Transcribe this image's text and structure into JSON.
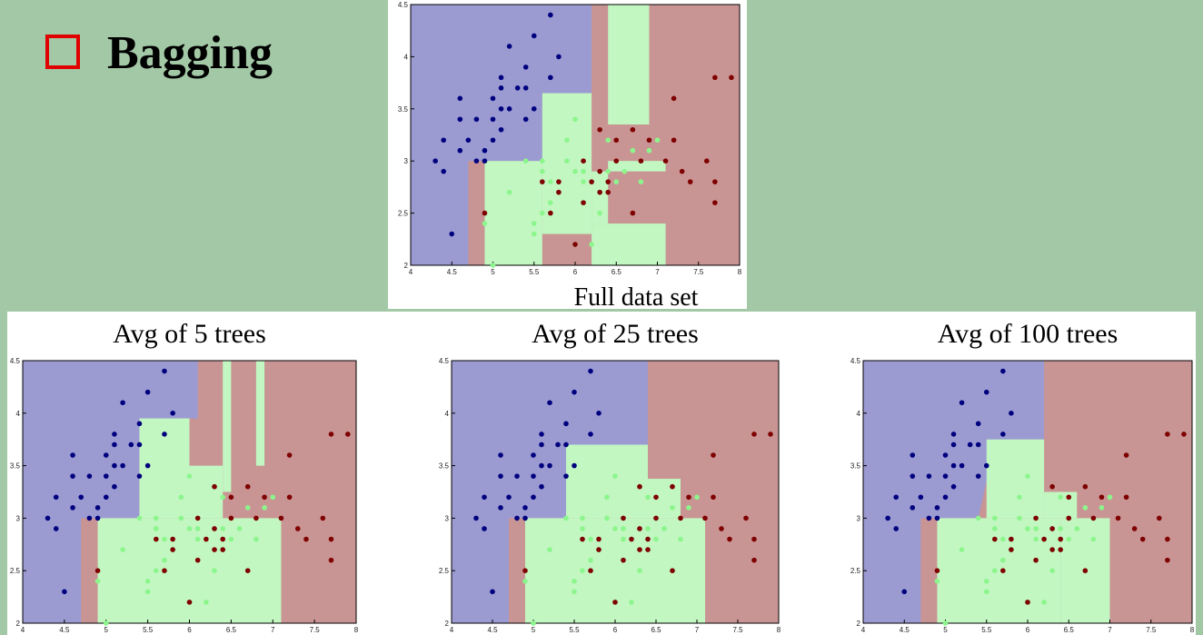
{
  "slide_title": "Bagging",
  "chart_data": [
    {
      "type": "scatter",
      "caption": "Full data set",
      "xlim": [
        4,
        8
      ],
      "ylim": [
        2,
        4.5
      ],
      "xticks": [
        4,
        4.5,
        5,
        5.5,
        6,
        6.5,
        7,
        7.5,
        8
      ],
      "yticks": [
        2,
        2.5,
        3,
        3.5,
        4,
        4.5
      ],
      "series": [
        {
          "color": "#00007f",
          "x": [
            5.1,
            4.9,
            4.7,
            4.6,
            5.0,
            5.4,
            4.6,
            5.0,
            4.4,
            4.9,
            5.4,
            4.8,
            4.8,
            4.3,
            5.8,
            5.7,
            5.7,
            5.1,
            5.4,
            5.1,
            4.6,
            5.1,
            5.2,
            5.2,
            5.5,
            5.0,
            5.5,
            4.5,
            4.4,
            5.3
          ],
          "y": [
            3.5,
            3.0,
            3.2,
            3.1,
            3.6,
            3.9,
            3.4,
            3.4,
            2.9,
            3.1,
            3.7,
            3.4,
            3.0,
            3.0,
            4.0,
            4.4,
            3.8,
            3.8,
            3.4,
            3.7,
            3.6,
            3.3,
            3.5,
            4.1,
            4.2,
            3.2,
            3.5,
            2.3,
            3.2,
            3.7
          ]
        },
        {
          "color": "#8cf58c",
          "x": [
            7.0,
            6.4,
            6.9,
            5.5,
            6.5,
            5.7,
            6.3,
            4.9,
            6.6,
            5.2,
            5.0,
            5.9,
            6.0,
            6.1,
            5.6,
            6.7,
            5.6,
            5.8,
            6.2,
            5.6,
            5.9,
            6.1,
            6.3,
            6.4,
            6.8,
            6.0,
            5.7,
            5.5,
            6.0,
            5.4
          ],
          "y": [
            3.2,
            3.2,
            3.1,
            2.3,
            2.8,
            2.8,
            3.3,
            2.4,
            2.9,
            2.7,
            2.0,
            3.0,
            2.2,
            2.9,
            2.9,
            3.1,
            3.0,
            2.7,
            2.2,
            2.5,
            3.2,
            2.8,
            2.5,
            2.9,
            2.8,
            2.9,
            2.6,
            2.4,
            3.4,
            3.0
          ]
        },
        {
          "color": "#7f0000",
          "x": [
            6.3,
            5.8,
            7.1,
            6.3,
            6.5,
            7.6,
            4.9,
            7.3,
            6.7,
            7.2,
            6.5,
            6.4,
            6.8,
            5.7,
            5.8,
            7.7,
            7.7,
            6.0,
            6.9,
            5.6,
            7.7,
            6.3,
            6.7,
            7.2,
            6.2,
            6.1,
            7.4,
            7.9,
            6.4,
            6.1
          ],
          "y": [
            3.3,
            2.7,
            3.0,
            2.9,
            3.0,
            3.0,
            2.5,
            2.9,
            2.5,
            3.6,
            3.2,
            2.7,
            3.0,
            2.5,
            2.8,
            3.8,
            2.6,
            2.2,
            3.2,
            2.8,
            2.8,
            2.7,
            3.3,
            3.2,
            2.8,
            3.0,
            2.8,
            3.8,
            2.8,
            2.6
          ]
        }
      ]
    },
    {
      "type": "scatter",
      "title": "Avg of 5 trees",
      "xlim": [
        4,
        8
      ],
      "ylim": [
        2,
        4.5
      ],
      "xticks": [
        4,
        4.5,
        5,
        5.5,
        6,
        6.5,
        7,
        7.5,
        8
      ],
      "yticks": [
        2,
        2.5,
        3,
        3.5,
        4,
        4.5
      ],
      "series": [
        {
          "color": "#00007f",
          "x": [
            5.1,
            4.9,
            4.7,
            4.6,
            5.0,
            5.4,
            4.6,
            5.0,
            4.4,
            4.9,
            5.4,
            4.8,
            4.8,
            4.3,
            5.8,
            5.7,
            5.7,
            5.1,
            5.4,
            5.1,
            4.6,
            5.1,
            5.2,
            5.2,
            5.5,
            5.0,
            5.5,
            4.5,
            4.4,
            5.3
          ],
          "y": [
            3.5,
            3.0,
            3.2,
            3.1,
            3.6,
            3.9,
            3.4,
            3.4,
            2.9,
            3.1,
            3.7,
            3.4,
            3.0,
            3.0,
            4.0,
            4.4,
            3.8,
            3.8,
            3.4,
            3.7,
            3.6,
            3.3,
            3.5,
            4.1,
            4.2,
            3.2,
            3.5,
            2.3,
            3.2,
            3.7
          ]
        },
        {
          "color": "#8cf58c",
          "x": [
            7.0,
            6.4,
            6.9,
            5.5,
            6.5,
            5.7,
            6.3,
            4.9,
            6.6,
            5.2,
            5.0,
            5.9,
            6.0,
            6.1,
            5.6,
            6.7,
            5.6,
            5.8,
            6.2,
            5.6,
            5.9,
            6.1,
            6.3,
            6.4,
            6.8,
            6.0,
            5.7,
            5.5,
            6.0,
            5.4
          ],
          "y": [
            3.2,
            3.2,
            3.1,
            2.3,
            2.8,
            2.8,
            3.3,
            2.4,
            2.9,
            2.7,
            2.0,
            3.0,
            2.2,
            2.9,
            2.9,
            3.1,
            3.0,
            2.7,
            2.2,
            2.5,
            3.2,
            2.8,
            2.5,
            2.9,
            2.8,
            2.9,
            2.6,
            2.4,
            3.4,
            3.0
          ]
        },
        {
          "color": "#7f0000",
          "x": [
            6.3,
            5.8,
            7.1,
            6.3,
            6.5,
            7.6,
            4.9,
            7.3,
            6.7,
            7.2,
            6.5,
            6.4,
            6.8,
            5.7,
            5.8,
            7.7,
            7.7,
            6.0,
            6.9,
            5.6,
            7.7,
            6.3,
            6.7,
            7.2,
            6.2,
            6.1,
            7.4,
            7.9,
            6.4,
            6.1
          ],
          "y": [
            3.3,
            2.7,
            3.0,
            2.9,
            3.0,
            3.0,
            2.5,
            2.9,
            2.5,
            3.6,
            3.2,
            2.7,
            3.0,
            2.5,
            2.8,
            3.8,
            2.6,
            2.2,
            3.2,
            2.8,
            2.8,
            2.7,
            3.3,
            3.2,
            2.8,
            3.0,
            2.8,
            3.8,
            2.8,
            2.6
          ]
        }
      ]
    },
    {
      "type": "scatter",
      "title": "Avg of 25 trees",
      "xlim": [
        4,
        8
      ],
      "ylim": [
        2,
        4.5
      ],
      "xticks": [
        4,
        4.5,
        5,
        5.5,
        6,
        6.5,
        7,
        7.5,
        8
      ],
      "yticks": [
        2,
        2.5,
        3,
        3.5,
        4,
        4.5
      ],
      "series": [
        {
          "color": "#00007f",
          "x": [
            5.1,
            4.9,
            4.7,
            4.6,
            5.0,
            5.4,
            4.6,
            5.0,
            4.4,
            4.9,
            5.4,
            4.8,
            4.8,
            4.3,
            5.8,
            5.7,
            5.7,
            5.1,
            5.4,
            5.1,
            4.6,
            5.1,
            5.2,
            5.2,
            5.5,
            5.0,
            5.5,
            4.5,
            4.4,
            5.3
          ],
          "y": [
            3.5,
            3.0,
            3.2,
            3.1,
            3.6,
            3.9,
            3.4,
            3.4,
            2.9,
            3.1,
            3.7,
            3.4,
            3.0,
            3.0,
            4.0,
            4.4,
            3.8,
            3.8,
            3.4,
            3.7,
            3.6,
            3.3,
            3.5,
            4.1,
            4.2,
            3.2,
            3.5,
            2.3,
            3.2,
            3.7
          ]
        },
        {
          "color": "#8cf58c",
          "x": [
            7.0,
            6.4,
            6.9,
            5.5,
            6.5,
            5.7,
            6.3,
            4.9,
            6.6,
            5.2,
            5.0,
            5.9,
            6.0,
            6.1,
            5.6,
            6.7,
            5.6,
            5.8,
            6.2,
            5.6,
            5.9,
            6.1,
            6.3,
            6.4,
            6.8,
            6.0,
            5.7,
            5.5,
            6.0,
            5.4
          ],
          "y": [
            3.2,
            3.2,
            3.1,
            2.3,
            2.8,
            2.8,
            3.3,
            2.4,
            2.9,
            2.7,
            2.0,
            3.0,
            2.2,
            2.9,
            2.9,
            3.1,
            3.0,
            2.7,
            2.2,
            2.5,
            3.2,
            2.8,
            2.5,
            2.9,
            2.8,
            2.9,
            2.6,
            2.4,
            3.4,
            3.0
          ]
        },
        {
          "color": "#7f0000",
          "x": [
            6.3,
            5.8,
            7.1,
            6.3,
            6.5,
            7.6,
            4.9,
            7.3,
            6.7,
            7.2,
            6.5,
            6.4,
            6.8,
            5.7,
            5.8,
            7.7,
            7.7,
            6.0,
            6.9,
            5.6,
            7.7,
            6.3,
            6.7,
            7.2,
            6.2,
            6.1,
            7.4,
            7.9,
            6.4,
            6.1
          ],
          "y": [
            3.3,
            2.7,
            3.0,
            2.9,
            3.0,
            3.0,
            2.5,
            2.9,
            2.5,
            3.6,
            3.2,
            2.7,
            3.0,
            2.5,
            2.8,
            3.8,
            2.6,
            2.2,
            3.2,
            2.8,
            2.8,
            2.7,
            3.3,
            3.2,
            2.8,
            3.0,
            2.8,
            3.8,
            2.8,
            2.6
          ]
        }
      ]
    },
    {
      "type": "scatter",
      "title": "Avg of 100 trees",
      "xlim": [
        4,
        8
      ],
      "ylim": [
        2,
        4.5
      ],
      "xticks": [
        4,
        4.5,
        5,
        5.5,
        6,
        6.5,
        7,
        7.5,
        8
      ],
      "yticks": [
        2,
        2.5,
        3,
        3.5,
        4,
        4.5
      ],
      "series": [
        {
          "color": "#00007f",
          "x": [
            5.1,
            4.9,
            4.7,
            4.6,
            5.0,
            5.4,
            4.6,
            5.0,
            4.4,
            4.9,
            5.4,
            4.8,
            4.8,
            4.3,
            5.8,
            5.7,
            5.7,
            5.1,
            5.4,
            5.1,
            4.6,
            5.1,
            5.2,
            5.2,
            5.5,
            5.0,
            5.5,
            4.5,
            4.4,
            5.3
          ],
          "y": [
            3.5,
            3.0,
            3.2,
            3.1,
            3.6,
            3.9,
            3.4,
            3.4,
            2.9,
            3.1,
            3.7,
            3.4,
            3.0,
            3.0,
            4.0,
            4.4,
            3.8,
            3.8,
            3.4,
            3.7,
            3.6,
            3.3,
            3.5,
            4.1,
            4.2,
            3.2,
            3.5,
            2.3,
            3.2,
            3.7
          ]
        },
        {
          "color": "#8cf58c",
          "x": [
            7.0,
            6.4,
            6.9,
            5.5,
            6.5,
            5.7,
            6.3,
            4.9,
            6.6,
            5.2,
            5.0,
            5.9,
            6.0,
            6.1,
            5.6,
            6.7,
            5.6,
            5.8,
            6.2,
            5.6,
            5.9,
            6.1,
            6.3,
            6.4,
            6.8,
            6.0,
            5.7,
            5.5,
            6.0,
            5.4
          ],
          "y": [
            3.2,
            3.2,
            3.1,
            2.3,
            2.8,
            2.8,
            3.3,
            2.4,
            2.9,
            2.7,
            2.0,
            3.0,
            2.2,
            2.9,
            2.9,
            3.1,
            3.0,
            2.7,
            2.2,
            2.5,
            3.2,
            2.8,
            2.5,
            2.9,
            2.8,
            2.9,
            2.6,
            2.4,
            3.4,
            3.0
          ]
        },
        {
          "color": "#7f0000",
          "x": [
            6.3,
            5.8,
            7.1,
            6.3,
            6.5,
            7.6,
            4.9,
            7.3,
            6.7,
            7.2,
            6.5,
            6.4,
            6.8,
            5.7,
            5.8,
            7.7,
            7.7,
            6.0,
            6.9,
            5.6,
            7.7,
            6.3,
            6.7,
            7.2,
            6.2,
            6.1,
            7.4,
            7.9,
            6.4,
            6.1
          ],
          "y": [
            3.3,
            2.7,
            3.0,
            2.9,
            3.0,
            3.0,
            2.5,
            2.9,
            2.5,
            3.6,
            3.2,
            2.7,
            3.0,
            2.5,
            2.8,
            3.8,
            2.6,
            2.2,
            3.2,
            2.8,
            2.8,
            2.7,
            3.3,
            3.2,
            2.8,
            3.0,
            2.8,
            3.8,
            2.8,
            2.6
          ]
        }
      ]
    }
  ]
}
